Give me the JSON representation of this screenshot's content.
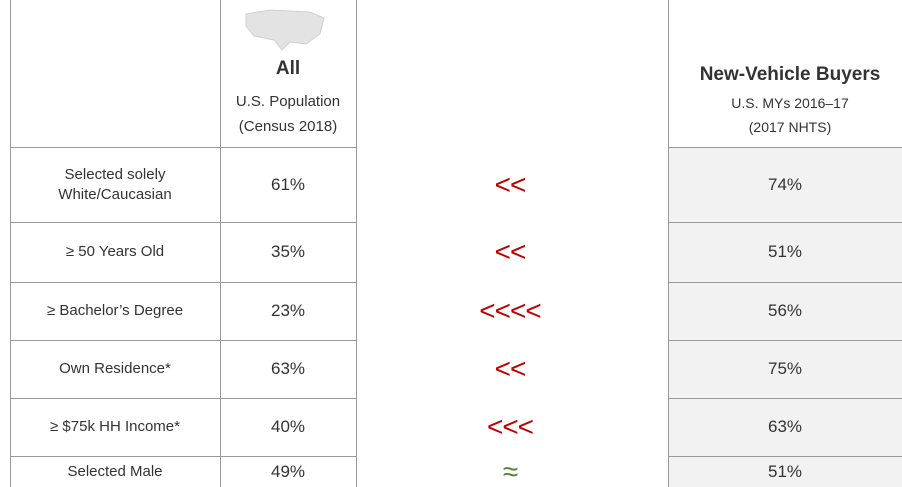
{
  "left_table": {
    "header": {
      "title": "All",
      "subtitle": [
        "U.S. Population",
        "(Census 2018)"
      ]
    },
    "rows": [
      {
        "label": [
          "Selected solely",
          "White/Caucasian"
        ],
        "value": "61%"
      },
      {
        "label": [
          "≥ 50 Years Old"
        ],
        "value": "35%"
      },
      {
        "label": [
          "≥ Bachelor’s Degree"
        ],
        "value": "23%"
      },
      {
        "label": [
          "Own Residence*"
        ],
        "value": "63%"
      },
      {
        "label": [
          "≥ $75k HH Income*"
        ],
        "value": "40%"
      },
      {
        "label": [
          "Selected Male"
        ],
        "value": "49%"
      }
    ]
  },
  "comparisons": [
    "<<",
    "<<",
    "<<<<",
    "<<",
    "<<<",
    "≈"
  ],
  "right_table": {
    "header": {
      "title": "New-Vehicle Buyers",
      "subtitle": [
        "U.S. MYs 2016–17",
        "(2017 NHTS)"
      ]
    },
    "values": [
      "74%",
      "51%",
      "56%",
      "75%",
      "63%",
      "51%"
    ]
  }
}
